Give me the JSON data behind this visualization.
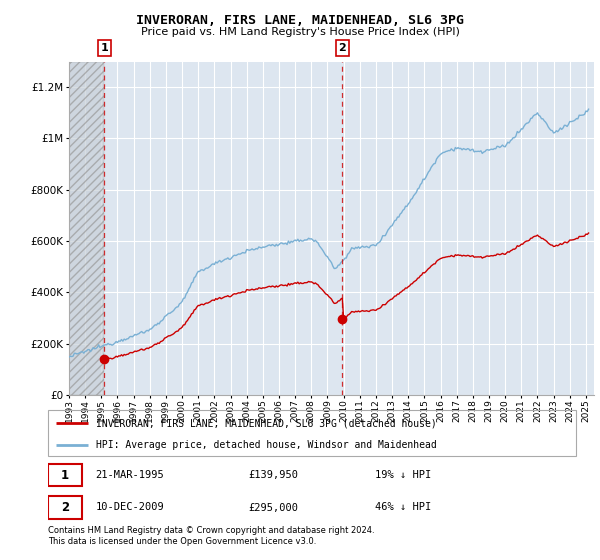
{
  "title": "INVERORAN, FIRS LANE, MAIDENHEAD, SL6 3PG",
  "subtitle": "Price paid vs. HM Land Registry's House Price Index (HPI)",
  "legend_line1": "INVERORAN, FIRS LANE, MAIDENHEAD, SL6 3PG (detached house)",
  "legend_line2": "HPI: Average price, detached house, Windsor and Maidenhead",
  "footnote1": "Contains HM Land Registry data © Crown copyright and database right 2024.",
  "footnote2": "This data is licensed under the Open Government Licence v3.0.",
  "sale1_date": "21-MAR-1995",
  "sale1_price": "£139,950",
  "sale1_hpi": "19% ↓ HPI",
  "sale2_date": "10-DEC-2009",
  "sale2_price": "£295,000",
  "sale2_hpi": "46% ↓ HPI",
  "red_color": "#cc0000",
  "blue_color": "#7ab0d4",
  "background_color": "#dde6f0",
  "ylim": [
    0,
    1300000
  ],
  "sale1_year": 1995.19,
  "sale2_year": 2009.92,
  "sale1_price_val": 139950,
  "sale2_price_val": 295000,
  "xmin": 1993,
  "xmax": 2025.5
}
